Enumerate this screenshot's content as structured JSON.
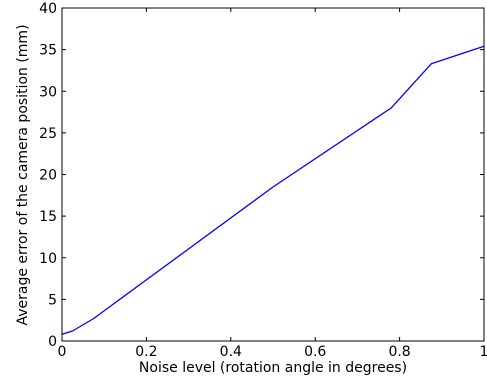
{
  "chart_data": {
    "type": "line",
    "title": "",
    "xlabel": "Noise level (rotation angle in degrees)",
    "ylabel": "Average error of the camera position (mm)",
    "xlim": [
      0,
      1
    ],
    "ylim": [
      0,
      40
    ],
    "x_ticks": [
      0,
      0.2,
      0.4,
      0.6,
      0.8,
      1
    ],
    "x_tick_labels": [
      "0",
      "0.2",
      "0.4",
      "0.6",
      "0.8",
      "1"
    ],
    "y_ticks": [
      0,
      5,
      10,
      15,
      20,
      25,
      30,
      35,
      40
    ],
    "y_tick_labels": [
      "0",
      "5",
      "10",
      "15",
      "20",
      "25",
      "30",
      "35",
      "40"
    ],
    "grid": false,
    "series": [
      {
        "color": "#0000ff",
        "x": [
          0,
          0.025,
          0.075,
          0.5,
          0.78,
          0.875,
          1
        ],
        "y": [
          0.8,
          1.2,
          2.7,
          18.5,
          28.0,
          33.3,
          35.4
        ]
      }
    ]
  }
}
